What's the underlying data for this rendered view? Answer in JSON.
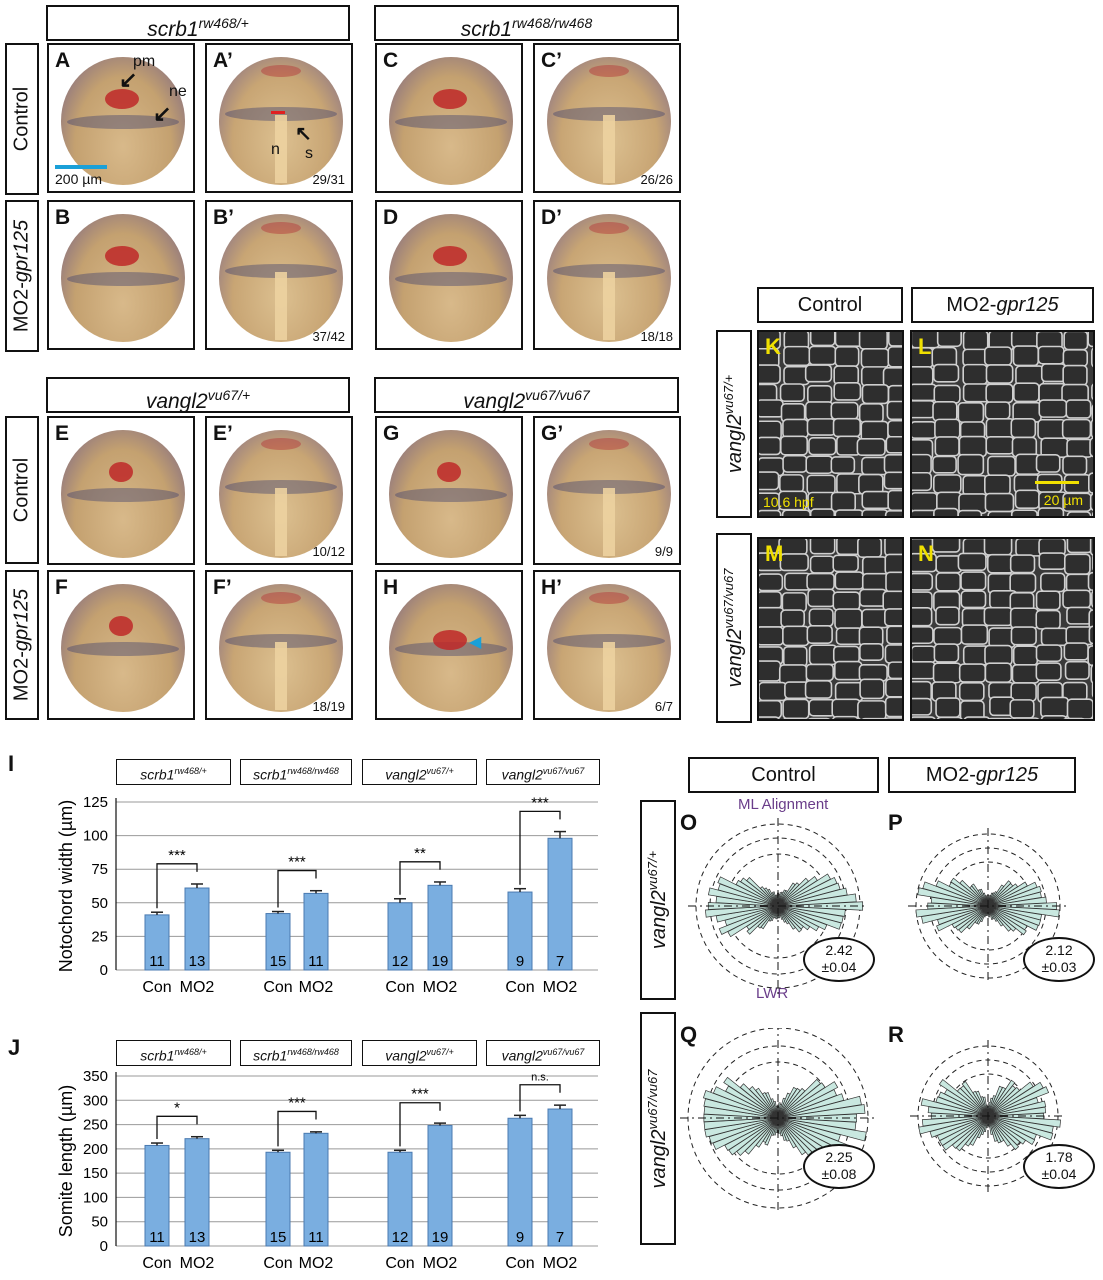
{
  "top": {
    "genotypes": {
      "scrb1_het": {
        "base": "scrb1",
        "sup": "rw468/+"
      },
      "scrb1_hom": {
        "base": "scrb1",
        "sup": "rw468/rw468"
      },
      "vangl2_het": {
        "base": "vangl2",
        "sup": "vu67/+"
      },
      "vangl2_hom": {
        "base": "vangl2",
        "sup": "vu67/vu67"
      }
    },
    "conditions": {
      "control": "Control",
      "mo2_prefix": "MO2-",
      "mo2_gene": "gpr125"
    },
    "panels": {
      "A": "A",
      "A2": "A’",
      "B": "B",
      "B2": "B’",
      "C": "C",
      "C2": "C’",
      "D": "D",
      "D2": "D’",
      "E": "E",
      "E2": "E’",
      "F": "F",
      "F2": "F’",
      "G": "G",
      "G2": "G’",
      "H": "H",
      "H2": "H’"
    },
    "ratios": {
      "A2": "29/31",
      "B2": "37/42",
      "C2": "26/26",
      "D2": "18/18",
      "E2": "10/12",
      "F2": "18/19",
      "G2": "9/9",
      "H2": "6/7"
    },
    "annotations": {
      "pm": "pm",
      "ne": "ne",
      "n": "n",
      "s": "s",
      "scale": "200 µm"
    }
  },
  "confocal": {
    "col_control": "Control",
    "col_mo2_prefix": "MO2-",
    "col_mo2_gene": "gpr125",
    "row1": {
      "base": "vangl2",
      "sup": "vu67/+"
    },
    "row2": {
      "base": "vangl2",
      "sup": "vu67/vu67"
    },
    "panels": {
      "K": "K",
      "L": "L",
      "M": "M",
      "N": "N"
    },
    "time": "10.6 hpf",
    "scale": "20 µm"
  },
  "charts": {
    "groups": [
      {
        "base": "scrb1",
        "sup": "rw468/+"
      },
      {
        "base": "scrb1",
        "sup": "rw468/rw468"
      },
      {
        "base": "vangl2",
        "sup": "vu67/+"
      },
      {
        "base": "vangl2",
        "sup": "vu67/vu67"
      }
    ],
    "I_label": "I",
    "J_label": "J"
  },
  "chart_data": [
    {
      "type": "bar",
      "ylabel": "Notochord width (µm)",
      "ylim": [
        0,
        125
      ],
      "yticks": [
        0,
        25,
        50,
        75,
        100,
        125
      ],
      "categories": [
        "Con",
        "MO2",
        "Con",
        "MO2",
        "Con",
        "MO2",
        "Con",
        "MO2"
      ],
      "values": [
        41,
        61,
        42,
        57,
        50,
        63,
        58,
        98
      ],
      "errors": [
        2,
        3,
        1.5,
        2,
        3,
        2.5,
        2.5,
        5
      ],
      "n": [
        "11",
        "13",
        "15",
        "11",
        "12",
        "19",
        "9",
        "7"
      ],
      "significance": [
        "***",
        "***",
        "**",
        "***"
      ],
      "grid": true,
      "color": "#7aaee0"
    },
    {
      "type": "bar",
      "ylabel": "Somite length (µm)",
      "ylim": [
        0,
        350
      ],
      "yticks": [
        0,
        50,
        100,
        150,
        200,
        250,
        300,
        350
      ],
      "categories": [
        "Con",
        "MO2",
        "Con",
        "MO2",
        "Con",
        "MO2",
        "Con",
        "MO2"
      ],
      "values": [
        207,
        221,
        193,
        232,
        193,
        248,
        263,
        282
      ],
      "errors": [
        5,
        4,
        4,
        3,
        4,
        5,
        6,
        8
      ],
      "n": [
        "11",
        "13",
        "15",
        "11",
        "12",
        "19",
        "9",
        "7"
      ],
      "significance": [
        "*",
        "***",
        "***",
        "n.s."
      ],
      "grid": true,
      "color": "#7aaee0"
    }
  ],
  "rose": {
    "col_control": "Control",
    "col_mo2_prefix": "MO2-",
    "col_mo2_gene": "gpr125",
    "row1": {
      "base": "vangl2",
      "sup": "vu67/+"
    },
    "row2": {
      "base": "vangl2",
      "sup": "vu67/vu67"
    },
    "ml_label": "ML Alignment",
    "lwr_label": "LWR",
    "panels": {
      "O": "O",
      "P": "P",
      "Q": "Q",
      "R": "R"
    },
    "values": {
      "O": {
        "mean": "2.42",
        "sd": "±0.04"
      },
      "P": {
        "mean": "2.12",
        "sd": "±0.03"
      },
      "Q": {
        "mean": "2.25",
        "sd": "±0.08"
      },
      "R": {
        "mean": "1.78",
        "sd": "±0.04"
      }
    },
    "label_color": "#6a3d8a",
    "petal_color": "#c9e8e0"
  }
}
